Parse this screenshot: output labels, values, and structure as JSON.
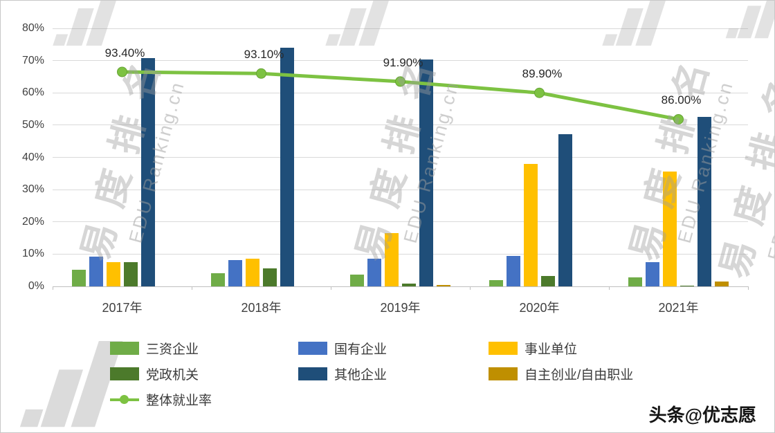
{
  "chart_data": {
    "type": "bar",
    "subtype": "grouped-bars-with-line-overlay",
    "categories": [
      "2017年",
      "2018年",
      "2019年",
      "2020年",
      "2021年"
    ],
    "bar_series": [
      {
        "name": "三资企业",
        "color": "#6FAC47",
        "values": [
          5.2,
          4.1,
          3.6,
          2.0,
          2.7
        ]
      },
      {
        "name": "国有企业",
        "color": "#4472C4",
        "values": [
          9.2,
          8.1,
          8.6,
          9.4,
          7.6
        ]
      },
      {
        "name": "事业单位",
        "color": "#FFC000",
        "values": [
          7.6,
          8.5,
          16.5,
          38.0,
          35.5
        ]
      },
      {
        "name": "党政机关",
        "color": "#4C7A2B",
        "values": [
          7.6,
          5.6,
          0.9,
          3.2,
          0.3
        ]
      },
      {
        "name": "其他企业",
        "color": "#1F4E79",
        "values": [
          70.8,
          74.0,
          70.4,
          47.2,
          52.5
        ]
      },
      {
        "name": "自主创业/自由职业",
        "color": "#BF8F00",
        "values": [
          0,
          0,
          0.5,
          0,
          1.4
        ]
      }
    ],
    "line_series": {
      "name": "整体就业率",
      "color": "#7DC242",
      "values": [
        93.4,
        93.1,
        91.9,
        89.9,
        86.0
      ],
      "labels": [
        "93.40%",
        "93.10%",
        "91.90%",
        "89.90%",
        "86.00%"
      ],
      "axis_positions": [
        66.5,
        66.0,
        63.5,
        60.0,
        51.8
      ]
    },
    "y_axis": {
      "min": 0,
      "max": 80,
      "tick_step": 10,
      "ticks": [
        "0%",
        "10%",
        "20%",
        "30%",
        "40%",
        "50%",
        "60%",
        "70%",
        "80%"
      ],
      "grid": true
    },
    "legend_rows": [
      [
        0,
        1,
        2
      ],
      [
        3,
        4,
        5
      ],
      [
        "line"
      ]
    ],
    "legend_position": "bottom-left"
  },
  "watermark": {
    "cn": "易度排名",
    "en": "EDU Ranking.cn"
  },
  "credit": "头条@优志愿"
}
